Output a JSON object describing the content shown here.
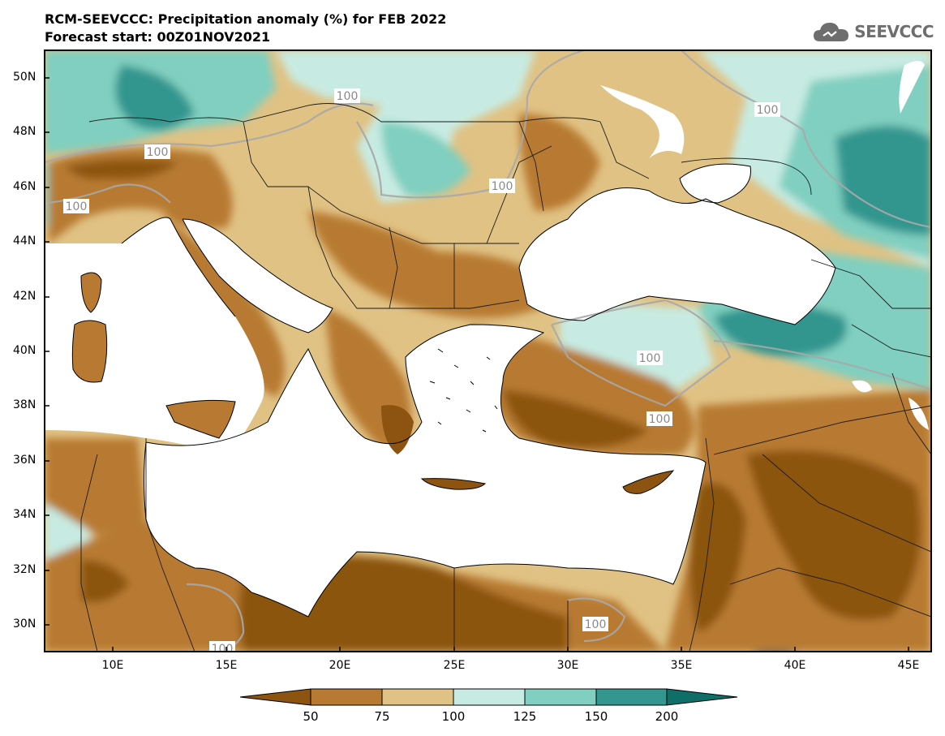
{
  "header": {
    "title": "RCM-SEEVCCC: Precipitation anomaly (%) for FEB 2022",
    "subtitle": "Forecast start: 00Z01NOV2021"
  },
  "logo": {
    "text": "SEEVCCC",
    "icon": "cloud-icon",
    "color": "#6e6e6e"
  },
  "map": {
    "variable": "Precipitation anomaly (%)",
    "lat_ticks": [
      "50N",
      "48N",
      "46N",
      "44N",
      "42N",
      "40N",
      "38N",
      "36N",
      "34N",
      "32N",
      "30N"
    ],
    "lon_ticks": [
      "10E",
      "15E",
      "20E",
      "25E",
      "30E",
      "35E",
      "40E",
      "45E"
    ],
    "contour_labels": [
      "100",
      "100",
      "100",
      "100",
      "100",
      "100",
      "100",
      "100",
      "100",
      "100",
      "100"
    ],
    "extent": {
      "lon": [
        7,
        46
      ],
      "lat": [
        29,
        51
      ]
    }
  },
  "colorbar": {
    "labels": [
      "50",
      "75",
      "100",
      "125",
      "150",
      "200"
    ],
    "colors": [
      "#8c5410",
      "#b87a33",
      "#e0c284",
      "#c7ebe2",
      "#80cfc0",
      "#33968f",
      "#0f6e68"
    ]
  }
}
